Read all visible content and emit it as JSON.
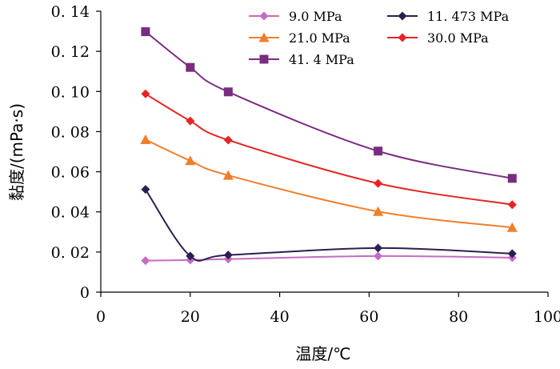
{
  "chart_data": {
    "type": "line",
    "title": "",
    "xlabel": "温度/℃",
    "ylabel": "黏度/(mPa·s)",
    "xlim": [
      0,
      100
    ],
    "ylim": [
      0,
      0.14
    ],
    "xticks": [
      0,
      20,
      40,
      60,
      80,
      100
    ],
    "xtick_labels": [
      "0",
      "20",
      "40",
      "60",
      "80",
      "100"
    ],
    "yticks": [
      0,
      0.02,
      0.04,
      0.06,
      0.08,
      0.1,
      0.12,
      0.14
    ],
    "ytick_labels": [
      "0",
      "0. 02",
      "0. 04",
      "0. 06",
      "0. 08",
      "0. 10",
      "0. 12",
      "0. 14"
    ],
    "grid": false,
    "legend_position": "top-right",
    "series": [
      {
        "name": "9.0 MPa",
        "color": "#c46bc4",
        "marker": "diamond",
        "x": [
          10,
          20,
          28.5,
          62,
          92
        ],
        "values": [
          0.0157,
          0.016,
          0.0165,
          0.018,
          0.0172
        ]
      },
      {
        "name": "11. 473 MPa",
        "color": "#2e1e50",
        "marker": "diamond",
        "x": [
          10,
          20,
          28.5,
          62,
          92
        ],
        "values": [
          0.0512,
          0.018,
          0.0185,
          0.022,
          0.0192
        ]
      },
      {
        "name": "21.0 MPa",
        "color": "#f07f2a",
        "marker": "triangle",
        "x": [
          10,
          20,
          28.5,
          62,
          92
        ],
        "values": [
          0.076,
          0.0655,
          0.0582,
          0.0402,
          0.0322
        ]
      },
      {
        "name": "30.0 MPa",
        "color": "#e52424",
        "marker": "diamond",
        "x": [
          10,
          20,
          28.5,
          62,
          92
        ],
        "values": [
          0.0988,
          0.0853,
          0.0758,
          0.0542,
          0.0436
        ]
      },
      {
        "name": "41. 4 MPa",
        "color": "#7a2c80",
        "marker": "square",
        "x": [
          10,
          20,
          28.5,
          62,
          92
        ],
        "values": [
          0.1298,
          0.112,
          0.0998,
          0.0703,
          0.0567
        ]
      }
    ]
  }
}
